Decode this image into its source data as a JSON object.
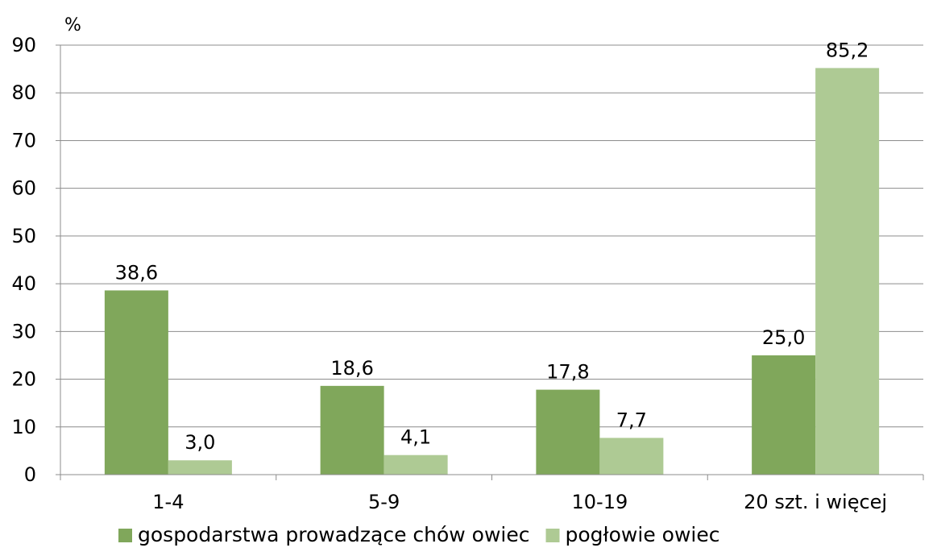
{
  "chart_data": {
    "type": "bar",
    "categories": [
      "1-4",
      "5-9",
      "10-19",
      "20 szt. i więcej"
    ],
    "series": [
      {
        "name": "gospodarstwa prowadzące chów owiec",
        "color": "#80a75b",
        "values": [
          38.6,
          18.6,
          17.8,
          25.0
        ],
        "labels": [
          "38,6",
          "18,6",
          "17,8",
          "25,0"
        ]
      },
      {
        "name": "pogłowie owiec",
        "color": "#aeca94",
        "values": [
          3.0,
          4.1,
          7.7,
          85.2
        ],
        "labels": [
          "3,0",
          "4,1",
          "7,7",
          "85,2"
        ]
      }
    ],
    "yunit": "%",
    "ylim": [
      0,
      90
    ],
    "yticks": [
      0,
      10,
      20,
      30,
      40,
      50,
      60,
      70,
      80,
      90
    ],
    "grid": true,
    "legend_position": "bottom"
  }
}
